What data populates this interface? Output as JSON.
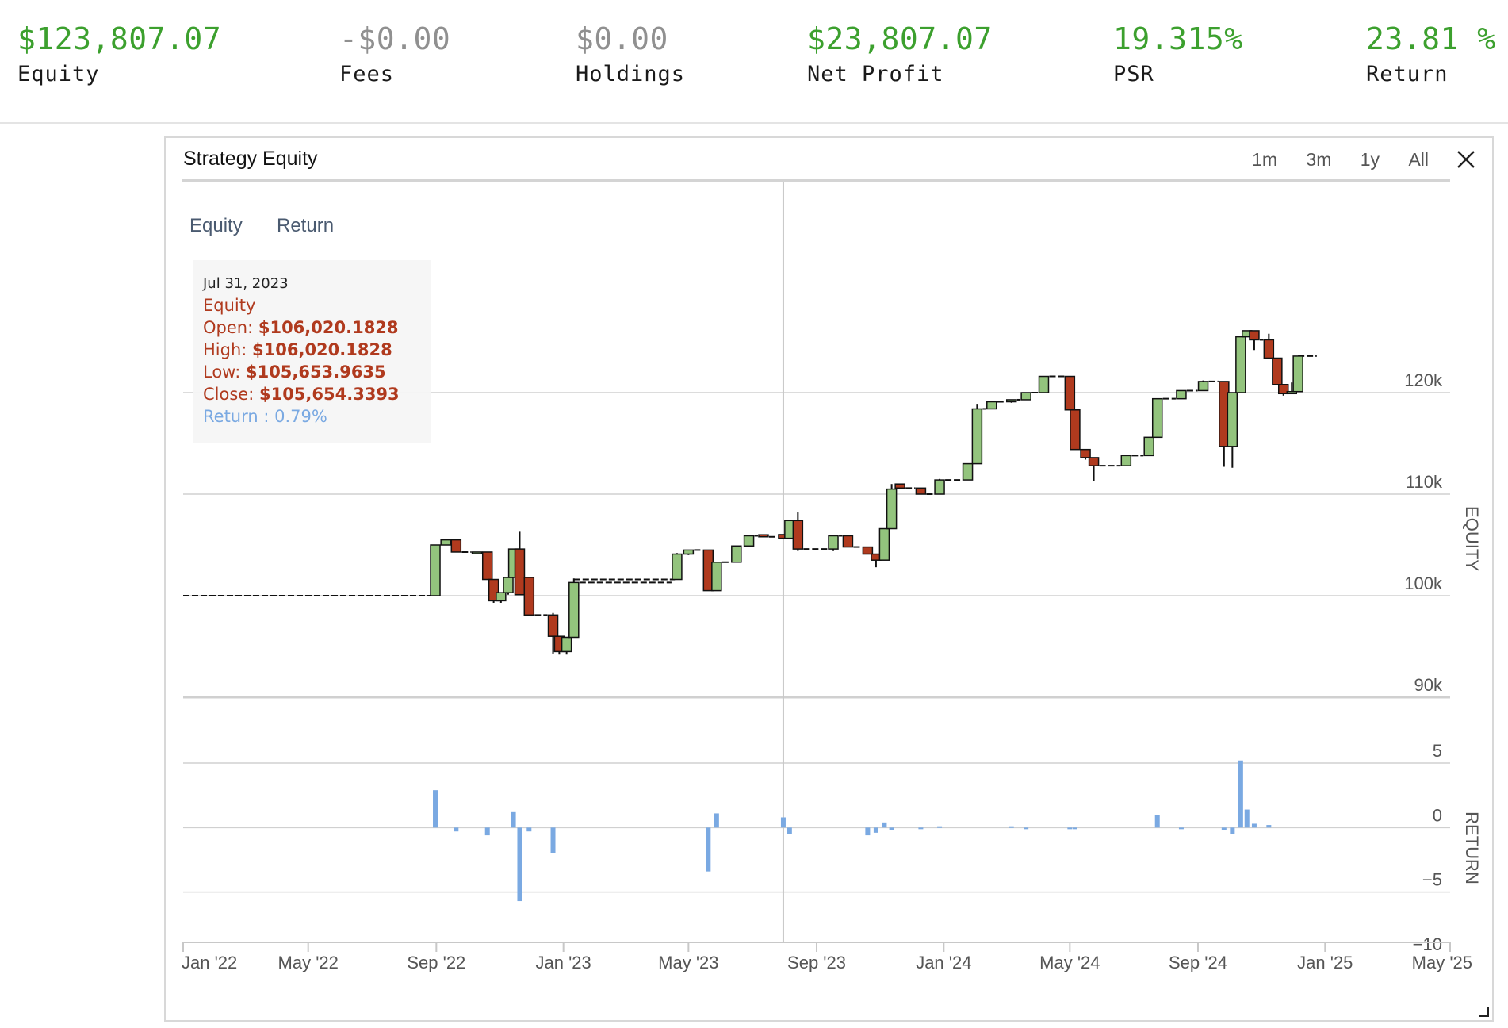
{
  "stats": [
    {
      "value": "$123,807.07",
      "label": "Equity",
      "color": "#3ca02e"
    },
    {
      "value": "-$0.00",
      "label": "Fees",
      "color": "#909090"
    },
    {
      "value": "$0.00",
      "label": "Holdings",
      "color": "#909090"
    },
    {
      "value": "$23,807.07",
      "label": "Net Profit",
      "color": "#3ca02e"
    },
    {
      "value": "19.315%",
      "label": "PSR",
      "color": "#3ca02e"
    },
    {
      "value": "23.81 %",
      "label": "Return",
      "color": "#3ca02e"
    }
  ],
  "panel": {
    "title": "Strategy Equity",
    "ranges": [
      "1m",
      "3m",
      "1y",
      "All"
    ],
    "close_icon": "close-icon"
  },
  "chart_data": {
    "type": "candlestick",
    "legend": [
      "Equity",
      "Return"
    ],
    "x_ticks": [
      "Jan '22",
      "May '22",
      "Sep '22",
      "Jan '23",
      "May '23",
      "Sep '23",
      "Jan '24",
      "May '24",
      "Sep '24",
      "Jan '25",
      "May '25"
    ],
    "equity_axis": {
      "label": "EQUITY",
      "min": 90000,
      "max": 130000,
      "ticks": [
        {
          "v": 90000,
          "t": "90k"
        },
        {
          "v": 100000,
          "t": "100k"
        },
        {
          "v": 110000,
          "t": "110k"
        },
        {
          "v": 120000,
          "t": "120k"
        }
      ]
    },
    "return_axis": {
      "label": "RETURN",
      "min": -10,
      "max": 5,
      "ticks": [
        {
          "v": 5,
          "t": "5"
        },
        {
          "v": 0,
          "t": "0"
        },
        {
          "v": -5,
          "t": "−5"
        },
        {
          "v": -10,
          "t": "−10"
        }
      ]
    },
    "up_color": "#93c47d",
    "down_color": "#b03a1e",
    "return_color": "#7aa9e2",
    "candles": [
      {
        "date": "2022-08-31",
        "open": 100000,
        "close": 105000,
        "high": 105000,
        "low": 100000
      },
      {
        "date": "2022-09-10",
        "open": 105000,
        "close": 105500,
        "high": 105500,
        "low": 105000
      },
      {
        "date": "2022-09-20",
        "open": 105500,
        "close": 104300,
        "high": 105500,
        "low": 104300
      },
      {
        "date": "2022-10-10",
        "open": 104300,
        "close": 104300,
        "high": 104300,
        "low": 104300
      },
      {
        "date": "2022-10-20",
        "open": 104300,
        "close": 101600,
        "high": 104300,
        "low": 101600
      },
      {
        "date": "2022-10-26",
        "open": 101600,
        "close": 99500,
        "high": 101600,
        "low": 99300
      },
      {
        "date": "2022-11-02",
        "open": 99500,
        "close": 100300,
        "high": 100300,
        "low": 99300
      },
      {
        "date": "2022-11-09",
        "open": 100300,
        "close": 101800,
        "high": 101800,
        "low": 100100
      },
      {
        "date": "2022-11-14",
        "open": 101800,
        "close": 104600,
        "high": 104600,
        "low": 101800
      },
      {
        "date": "2022-11-20",
        "open": 104600,
        "close": 100100,
        "high": 106300,
        "low": 100100
      },
      {
        "date": "2022-11-29",
        "open": 101800,
        "close": 98100,
        "high": 101800,
        "low": 98100
      },
      {
        "date": "2022-12-22",
        "open": 98100,
        "close": 96000,
        "high": 98300,
        "low": 94300
      },
      {
        "date": "2022-12-28",
        "open": 96000,
        "close": 94500,
        "high": 96000,
        "low": 94200
      },
      {
        "date": "2023-01-04",
        "open": 94500,
        "close": 95900,
        "high": 95900,
        "low": 94200
      },
      {
        "date": "2023-01-11",
        "open": 95900,
        "close": 101300,
        "high": 101700,
        "low": 95900
      },
      {
        "date": "2023-04-20",
        "open": 101600,
        "close": 104100,
        "high": 104200,
        "low": 101600
      },
      {
        "date": "2023-05-01",
        "open": 104100,
        "close": 104500,
        "high": 104500,
        "low": 104000
      },
      {
        "date": "2023-05-20",
        "open": 104500,
        "close": 100500,
        "high": 104500,
        "low": 100500
      },
      {
        "date": "2023-05-28",
        "open": 100500,
        "close": 103300,
        "high": 103300,
        "low": 100500
      },
      {
        "date": "2023-06-16",
        "open": 103300,
        "close": 104900,
        "high": 104900,
        "low": 103300
      },
      {
        "date": "2023-06-28",
        "open": 104900,
        "close": 105900,
        "high": 106000,
        "low": 104900
      },
      {
        "date": "2023-07-12",
        "open": 106000,
        "close": 105800,
        "high": 106000,
        "low": 105800
      },
      {
        "date": "2023-07-31",
        "open": 106020,
        "close": 105654,
        "high": 106020,
        "low": 105654
      },
      {
        "date": "2023-08-06",
        "open": 105654,
        "close": 107400,
        "high": 107400,
        "low": 105654
      },
      {
        "date": "2023-08-14",
        "open": 107400,
        "close": 104600,
        "high": 108200,
        "low": 104400
      },
      {
        "date": "2023-09-17",
        "open": 104600,
        "close": 105900,
        "high": 105900,
        "low": 104400
      },
      {
        "date": "2023-10-01",
        "open": 105900,
        "close": 104800,
        "high": 105900,
        "low": 104800
      },
      {
        "date": "2023-10-20",
        "open": 104800,
        "close": 104100,
        "high": 104800,
        "low": 104100
      },
      {
        "date": "2023-10-28",
        "open": 104100,
        "close": 103500,
        "high": 104100,
        "low": 102800
      },
      {
        "date": "2023-11-05",
        "open": 103500,
        "close": 106600,
        "high": 106600,
        "low": 103500
      },
      {
        "date": "2023-11-12",
        "open": 106600,
        "close": 110500,
        "high": 111000,
        "low": 106600
      },
      {
        "date": "2023-11-20",
        "open": 111000,
        "close": 110600,
        "high": 111000,
        "low": 110600
      },
      {
        "date": "2023-12-10",
        "open": 110600,
        "close": 110000,
        "high": 110600,
        "low": 110000
      },
      {
        "date": "2023-12-28",
        "open": 110000,
        "close": 111400,
        "high": 111500,
        "low": 110000
      },
      {
        "date": "2024-01-24",
        "open": 111400,
        "close": 113000,
        "high": 113000,
        "low": 111400
      },
      {
        "date": "2024-02-02",
        "open": 113000,
        "close": 118400,
        "high": 118900,
        "low": 113000
      },
      {
        "date": "2024-02-16",
        "open": 118400,
        "close": 119100,
        "high": 119100,
        "low": 118400
      },
      {
        "date": "2024-03-06",
        "open": 119100,
        "close": 119300,
        "high": 119300,
        "low": 119000
      },
      {
        "date": "2024-03-20",
        "open": 119300,
        "close": 120000,
        "high": 120000,
        "low": 119300
      },
      {
        "date": "2024-04-06",
        "open": 120000,
        "close": 121600,
        "high": 121600,
        "low": 120000
      },
      {
        "date": "2024-05-01",
        "open": 121600,
        "close": 118300,
        "high": 121600,
        "low": 118300
      },
      {
        "date": "2024-05-06",
        "open": 118300,
        "close": 114400,
        "high": 118300,
        "low": 114400
      },
      {
        "date": "2024-05-16",
        "open": 114400,
        "close": 113600,
        "high": 114400,
        "low": 113400
      },
      {
        "date": "2024-05-24",
        "open": 113600,
        "close": 112800,
        "high": 113600,
        "low": 111300
      },
      {
        "date": "2024-06-24",
        "open": 112800,
        "close": 113800,
        "high": 113800,
        "low": 112800
      },
      {
        "date": "2024-07-16",
        "open": 113800,
        "close": 115600,
        "high": 115600,
        "low": 113800
      },
      {
        "date": "2024-07-24",
        "open": 115600,
        "close": 119400,
        "high": 119400,
        "low": 115600
      },
      {
        "date": "2024-08-16",
        "open": 119400,
        "close": 120200,
        "high": 120200,
        "low": 119400
      },
      {
        "date": "2024-09-06",
        "open": 120200,
        "close": 121100,
        "high": 121200,
        "low": 120200
      },
      {
        "date": "2024-09-26",
        "open": 121100,
        "close": 114700,
        "high": 121100,
        "low": 112700
      },
      {
        "date": "2024-10-04",
        "open": 114700,
        "close": 120000,
        "high": 120000,
        "low": 112600
      },
      {
        "date": "2024-10-12",
        "open": 120000,
        "close": 125500,
        "high": 125600,
        "low": 120000
      },
      {
        "date": "2024-10-18",
        "open": 125500,
        "close": 126100,
        "high": 126100,
        "low": 125500
      },
      {
        "date": "2024-10-25",
        "open": 126100,
        "close": 125200,
        "high": 126100,
        "low": 124200
      },
      {
        "date": "2024-11-08",
        "open": 125200,
        "close": 123400,
        "high": 125800,
        "low": 123400
      },
      {
        "date": "2024-11-16",
        "open": 123400,
        "close": 120800,
        "high": 123400,
        "low": 120800
      },
      {
        "date": "2024-11-22",
        "open": 120800,
        "close": 119900,
        "high": 120800,
        "low": 119700
      },
      {
        "date": "2024-11-30",
        "open": 119900,
        "close": 120100,
        "high": 121000,
        "low": 119900
      },
      {
        "date": "2024-12-06",
        "open": 120100,
        "close": 123600,
        "high": 123600,
        "low": 120100
      }
    ],
    "flat_segments": [
      {
        "from": "2022-01-01",
        "to": "2022-08-27",
        "value": 100000
      },
      {
        "from": "2023-01-11",
        "to": "2023-04-18",
        "value": 101600
      },
      {
        "from": "2024-12-06",
        "to": "2024-12-24",
        "value": 123600
      }
    ],
    "returns": [
      {
        "date": "2022-08-31",
        "value": 2.9
      },
      {
        "date": "2022-09-20",
        "value": -0.3
      },
      {
        "date": "2022-10-20",
        "value": -0.6
      },
      {
        "date": "2022-11-14",
        "value": 1.2
      },
      {
        "date": "2022-11-20",
        "value": -5.7
      },
      {
        "date": "2022-11-29",
        "value": -0.3
      },
      {
        "date": "2022-12-22",
        "value": -2.0
      },
      {
        "date": "2023-05-20",
        "value": -3.4
      },
      {
        "date": "2023-05-28",
        "value": 1.1
      },
      {
        "date": "2023-07-31",
        "value": 0.79
      },
      {
        "date": "2023-08-06",
        "value": -0.5
      },
      {
        "date": "2023-10-20",
        "value": -0.6
      },
      {
        "date": "2023-10-28",
        "value": -0.4
      },
      {
        "date": "2023-11-05",
        "value": 0.4
      },
      {
        "date": "2023-11-12",
        "value": -0.2
      },
      {
        "date": "2023-12-10",
        "value": -0.1
      },
      {
        "date": "2023-12-28",
        "value": 0.1
      },
      {
        "date": "2024-03-06",
        "value": 0.1
      },
      {
        "date": "2024-03-20",
        "value": -0.1
      },
      {
        "date": "2024-05-01",
        "value": -0.1
      },
      {
        "date": "2024-05-06",
        "value": -0.1
      },
      {
        "date": "2024-07-24",
        "value": 1.0
      },
      {
        "date": "2024-08-16",
        "value": -0.1
      },
      {
        "date": "2024-09-26",
        "value": -0.2
      },
      {
        "date": "2024-10-04",
        "value": -0.5
      },
      {
        "date": "2024-10-12",
        "value": 5.2
      },
      {
        "date": "2024-10-18",
        "value": 1.4
      },
      {
        "date": "2024-10-25",
        "value": 0.3
      },
      {
        "date": "2024-11-08",
        "value": 0.2
      }
    ],
    "crosshair_date": "2023-07-31",
    "tooltip": {
      "date": "Jul 31, 2023",
      "series": "Equity",
      "open_label": "Open:",
      "open": "$106,020.1828",
      "high_label": "High:",
      "high": "$106,020.1828",
      "low_label": "Low:",
      "low": "$105,653.9635",
      "close_label": "Close:",
      "close": "$105,654.3393",
      "return_label": "Return :",
      "return_value": "0.79%"
    }
  }
}
